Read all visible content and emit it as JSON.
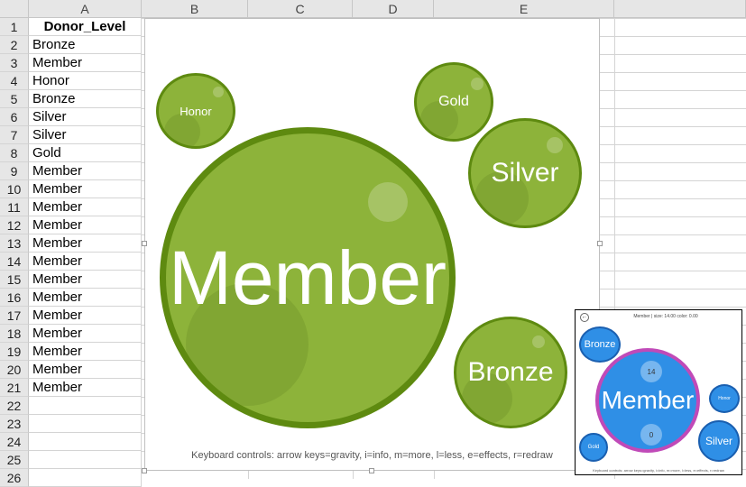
{
  "spreadsheet": {
    "columns": [
      "A",
      "B",
      "C",
      "D",
      "E"
    ],
    "rows": [
      "1",
      "2",
      "3",
      "4",
      "5",
      "6",
      "7",
      "8",
      "9",
      "10",
      "11",
      "12",
      "13",
      "14",
      "15",
      "16",
      "17",
      "18",
      "19",
      "20",
      "21",
      "22",
      "23",
      "24",
      "25",
      "26"
    ],
    "column_a": [
      "Donor_Level",
      "Bronze",
      "Member",
      "Honor",
      "Bronze",
      "Silver",
      "Silver",
      "Gold",
      "Member",
      "Member",
      "Member",
      "Member",
      "Member",
      "Member",
      "Member",
      "Member",
      "Member",
      "Member",
      "Member",
      "Member",
      "Member",
      "",
      "",
      "",
      "",
      ""
    ]
  },
  "chart": {
    "bubbles": {
      "member": "Member",
      "honor": "Honor",
      "gold": "Gold",
      "silver": "Silver",
      "bronze": "Bronze"
    },
    "keyboard_controls": "Keyboard controls: arrow keys=gravity, i=info, m=more, l=less, e=effects, r=redraw",
    "colors": {
      "fill": "#8db33a",
      "stroke": "#5e8a10"
    }
  },
  "thumbnail": {
    "header_text": "Member  |  size: 14.00 color: 0.00",
    "bubbles": {
      "member": "Member",
      "bronze": "Bronze",
      "honor": "Honor",
      "gold": "Gold",
      "silver": "Silver"
    },
    "count_top": "14",
    "count_bottom": "0",
    "footer_text": "Keyboard controls: arrow keys=gravity, i=info, m=more, l=less, e=effects, r=redraw",
    "colors": {
      "fill": "#2f8fe6",
      "highlight": "#c04ab8"
    }
  }
}
